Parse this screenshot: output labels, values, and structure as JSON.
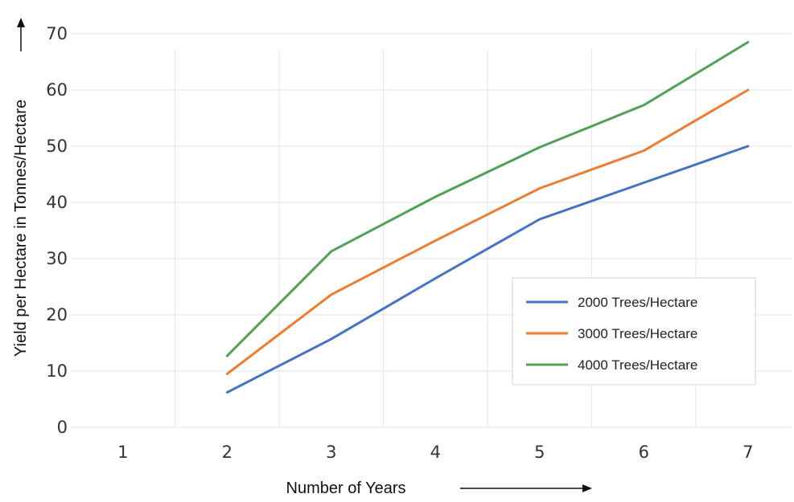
{
  "chart_data": {
    "type": "line",
    "x": [
      2,
      3,
      4,
      5,
      6,
      7
    ],
    "x_ticks": [
      1,
      2,
      3,
      4,
      5,
      6,
      7
    ],
    "y_ticks": [
      0,
      10,
      20,
      30,
      40,
      50,
      60,
      70
    ],
    "xlim": [
      1,
      7
    ],
    "ylim": [
      0,
      70
    ],
    "xlabel": "Number of Years",
    "ylabel": "Yield per Hectare in Tonnes/Hectare",
    "grid": true,
    "legend_position": "bottom-right",
    "series": [
      {
        "name": "2000 Trees/Hectare",
        "color": "#4472C4",
        "values": [
          6.2,
          15.7,
          26.5,
          37,
          43.5,
          50
        ]
      },
      {
        "name": "3000 Trees/Hectare",
        "color": "#ED7D31",
        "values": [
          9.5,
          23.6,
          33.2,
          42.5,
          49.2,
          60
        ]
      },
      {
        "name": "4000 Trees/Hectare",
        "color": "#4FA15A",
        "values": [
          12.7,
          31.3,
          41,
          49.8,
          57.3,
          68.5
        ]
      }
    ]
  }
}
